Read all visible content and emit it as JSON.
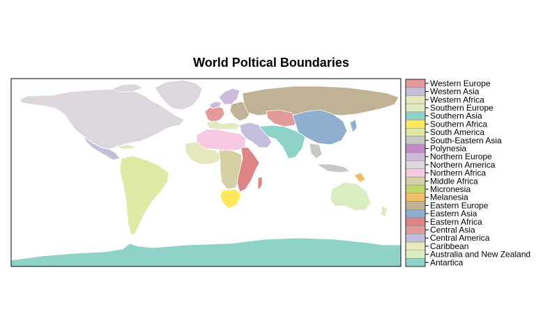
{
  "title": "World Poltical Boundaries",
  "legend": {
    "items": [
      {
        "label": "Western Europe",
        "color": "#e49a9a"
      },
      {
        "label": "Western Asia",
        "color": "#c4bedc"
      },
      {
        "label": "Western Africa",
        "color": "#e6e7bd"
      },
      {
        "label": "Southern Europe",
        "color": "#e2ebc0"
      },
      {
        "label": "Southern Asia",
        "color": "#8dd3c7"
      },
      {
        "label": "Southern Africa",
        "color": "#ffe95a"
      },
      {
        "label": "South America",
        "color": "#dfe9a4"
      },
      {
        "label": "South-Eastern Asia",
        "color": "#c7c7c3"
      },
      {
        "label": "Polynesia",
        "color": "#c08bc4"
      },
      {
        "label": "Northern Europe",
        "color": "#cdbbd9"
      },
      {
        "label": "Northern America",
        "color": "#ddd6dc"
      },
      {
        "label": "Northern Africa",
        "color": "#f6c9e1"
      },
      {
        "label": "Middle Africa",
        "color": "#d5d1a4"
      },
      {
        "label": "Micronesia",
        "color": "#c2d770"
      },
      {
        "label": "Melanesia",
        "color": "#efbd6c"
      },
      {
        "label": "Eastern Europe",
        "color": "#bfb295"
      },
      {
        "label": "Eastern Asia",
        "color": "#90aece"
      },
      {
        "label": "Eastern Africa",
        "color": "#dd8484"
      },
      {
        "label": "Central Asia",
        "color": "#e19b9b"
      },
      {
        "label": "Central America",
        "color": "#c3bedc"
      },
      {
        "label": "Caribbean",
        "color": "#e8e8bd"
      },
      {
        "label": "Australia and New Zealand",
        "color": "#d8eec0"
      },
      {
        "label": "Antartica",
        "color": "#8fd3c7"
      }
    ]
  }
}
